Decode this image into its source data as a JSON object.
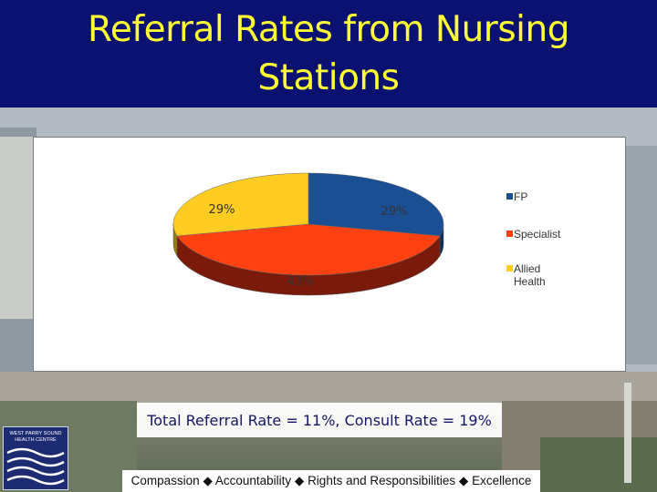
{
  "slide": {
    "title": "Referral Rates from Nursing Stations",
    "subtitle": "Total Referral Rate = 11%, Consult Rate = 19%",
    "footer": {
      "items": [
        "Compassion",
        "Accountability",
        "Rights and Responsibilities",
        "Excellence"
      ],
      "separator": "◆"
    },
    "logo": {
      "line1": "WEST PARRY SOUND",
      "line2": "HEALTH CENTRE"
    }
  },
  "colors": {
    "title_bar": "#0b1170",
    "title_text": "#ffff33",
    "fp": "#1b4f93",
    "specialist": "#ff4010",
    "allied_health": "#ffcc22"
  },
  "chart_data": {
    "type": "pie",
    "style": "3d",
    "categories": [
      "FP",
      "Specialist",
      "Allied Health"
    ],
    "values": [
      29,
      43,
      29
    ],
    "labels": [
      "29%",
      "43%",
      "29%"
    ],
    "legend": [
      "FP",
      "Specialist",
      "Allied Health"
    ],
    "legend_position": "right",
    "title": ""
  }
}
